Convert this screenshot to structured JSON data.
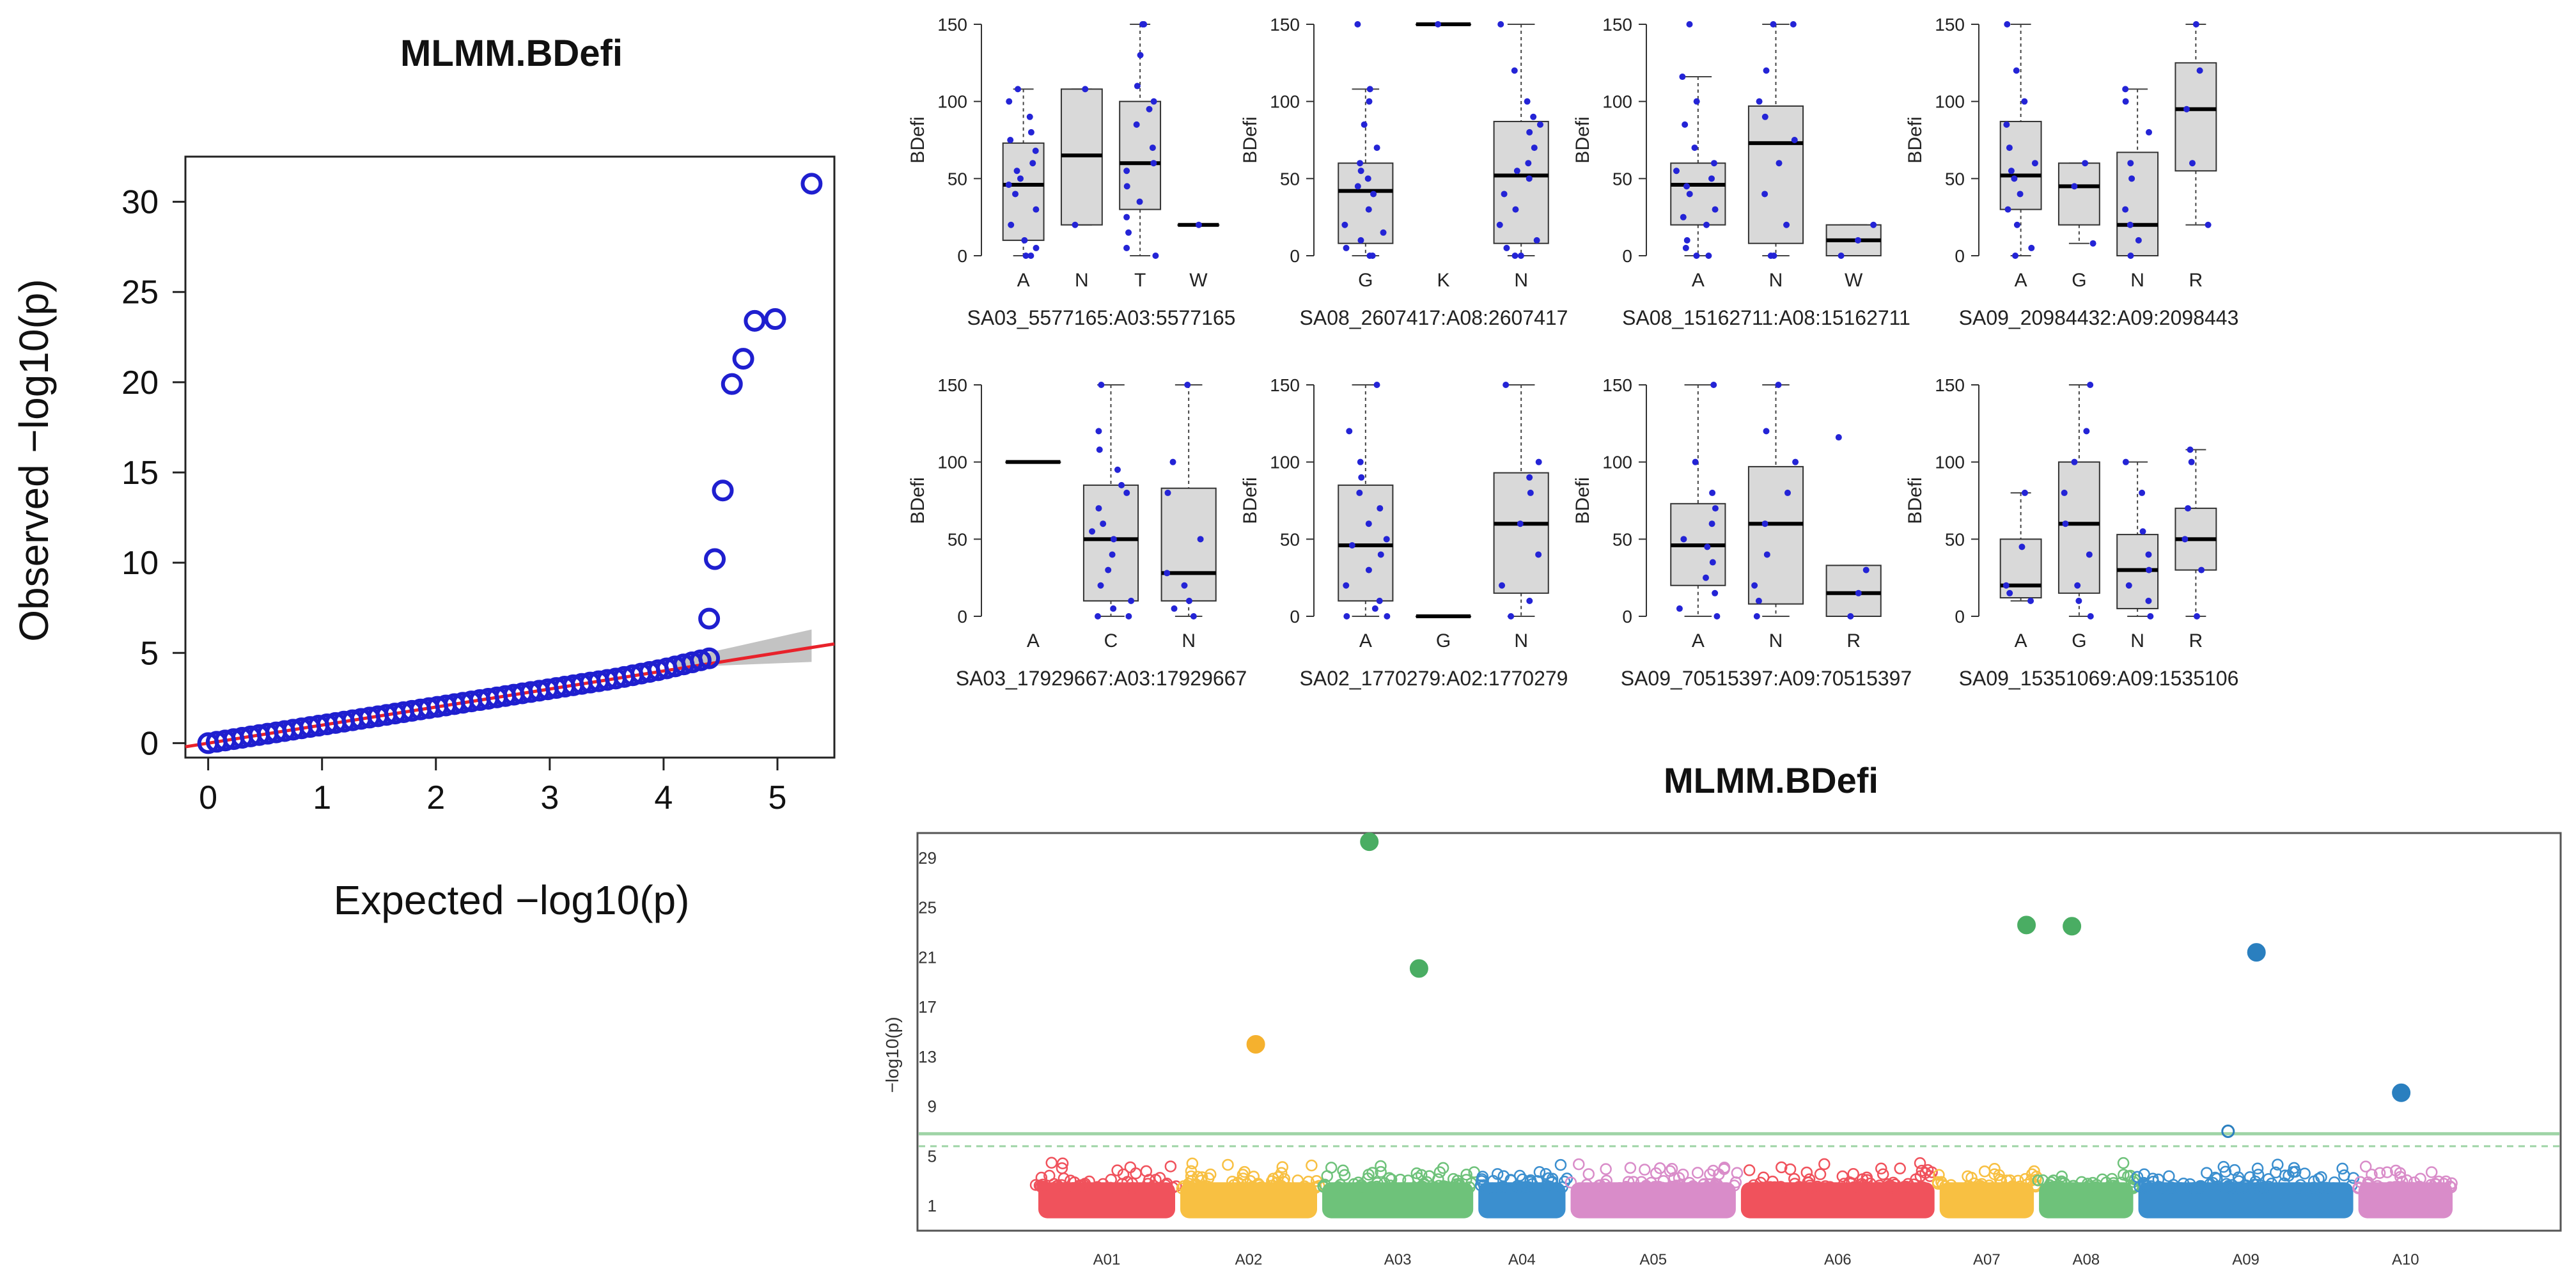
{
  "qq_plot": {
    "type": "scatter",
    "title": "MLMM.BDefi",
    "xlabel": "Expected  −log10(p)",
    "ylabel": "Observed  −log10(p)",
    "xlim": [
      -0.2,
      5.5
    ],
    "ylim": [
      -0.8,
      32.5
    ],
    "xticks": [
      0,
      1,
      2,
      3,
      4,
      5
    ],
    "yticks": [
      0,
      5,
      10,
      15,
      20,
      25,
      30
    ],
    "reference_line": {
      "x": [
        -0.2,
        5.5
      ],
      "y": [
        -0.2,
        5.5
      ]
    },
    "bulk_points": {
      "x_start": 0.0,
      "x_end": 4.4,
      "count": 60,
      "y_curve": [
        [
          0,
          0
        ],
        [
          1,
          1.0
        ],
        [
          2,
          2.0
        ],
        [
          3,
          3.0
        ],
        [
          3.6,
          3.6
        ],
        [
          4.0,
          4.1
        ],
        [
          4.4,
          4.7
        ]
      ]
    },
    "outliers": [
      [
        4.4,
        6.9
      ],
      [
        4.45,
        10.2
      ],
      [
        4.52,
        14.0
      ],
      [
        4.6,
        19.9
      ],
      [
        4.7,
        21.3
      ],
      [
        4.8,
        23.4
      ],
      [
        4.98,
        23.5
      ],
      [
        5.3,
        31.0
      ]
    ],
    "point_color": "#1f1fcf",
    "line_color": "#e8222b",
    "band_color": "#bdbdbd"
  },
  "boxplots": [
    {
      "type": "box",
      "ylabel": "BDefi",
      "xlabel": "SA03_5577165:A03:5577165",
      "ylim": [
        0,
        150
      ],
      "yticks": [
        0,
        50,
        100,
        150
      ],
      "groups": [
        {
          "label": "A",
          "q1": 10,
          "median": 46,
          "q3": 73,
          "wmin": 0,
          "wmax": 108,
          "points": [
            0,
            0,
            5,
            10,
            20,
            30,
            40,
            46,
            50,
            55,
            60,
            68,
            75,
            80,
            90,
            100,
            108
          ]
        },
        {
          "label": "N",
          "q1": 20,
          "median": 65,
          "q3": 108,
          "wmin": 20,
          "wmax": 108,
          "points": [
            20,
            108
          ]
        },
        {
          "label": "T",
          "q1": 30,
          "median": 60,
          "q3": 100,
          "wmin": 0,
          "wmax": 150,
          "points": [
            0,
            5,
            15,
            25,
            35,
            45,
            55,
            60,
            70,
            85,
            95,
            100,
            110,
            130,
            150,
            150
          ]
        },
        {
          "label": "W",
          "q1": 20,
          "median": 20,
          "q3": 20,
          "wmin": 20,
          "wmax": 20,
          "points": [
            20
          ]
        }
      ]
    },
    {
      "type": "box",
      "ylabel": "BDefi",
      "xlabel": "SA08_2607417:A08:2607417",
      "ylim": [
        0,
        150
      ],
      "yticks": [
        0,
        50,
        100,
        150
      ],
      "groups": [
        {
          "label": "G",
          "q1": 8,
          "median": 42,
          "q3": 60,
          "wmin": 0,
          "wmax": 108,
          "points": [
            0,
            0,
            5,
            10,
            15,
            20,
            30,
            40,
            45,
            50,
            55,
            60,
            70,
            85,
            100,
            108,
            150
          ]
        },
        {
          "label": "K",
          "q1": 150,
          "median": 150,
          "q3": 150,
          "wmin": 150,
          "wmax": 150,
          "points": [
            150
          ]
        },
        {
          "label": "N",
          "q1": 8,
          "median": 52,
          "q3": 87,
          "wmin": 0,
          "wmax": 150,
          "points": [
            0,
            0,
            5,
            10,
            20,
            30,
            40,
            50,
            55,
            60,
            70,
            80,
            85,
            90,
            100,
            120,
            150
          ]
        }
      ]
    },
    {
      "type": "box",
      "ylabel": "BDefi",
      "xlabel": "SA08_15162711:A08:15162711",
      "ylim": [
        0,
        150
      ],
      "yticks": [
        0,
        50,
        100,
        150
      ],
      "groups": [
        {
          "label": "A",
          "q1": 20,
          "median": 46,
          "q3": 60,
          "wmin": 0,
          "wmax": 116,
          "points": [
            0,
            0,
            5,
            10,
            20,
            25,
            30,
            40,
            45,
            50,
            55,
            60,
            70,
            85,
            100,
            116,
            150
          ]
        },
        {
          "label": "N",
          "q1": 8,
          "median": 73,
          "q3": 97,
          "wmin": 0,
          "wmax": 150,
          "points": [
            0,
            0,
            20,
            40,
            60,
            75,
            90,
            100,
            120,
            150,
            150
          ]
        },
        {
          "label": "W",
          "q1": 0,
          "median": 10,
          "q3": 20,
          "wmin": 0,
          "wmax": 20,
          "points": [
            0,
            10,
            20
          ]
        }
      ]
    },
    {
      "type": "box",
      "ylabel": "BDefi",
      "xlabel": "SA09_20984432:A09:2098443",
      "ylim": [
        0,
        150
      ],
      "yticks": [
        0,
        50,
        100,
        150
      ],
      "groups": [
        {
          "label": "A",
          "q1": 30,
          "median": 52,
          "q3": 87,
          "wmin": 0,
          "wmax": 150,
          "points": [
            0,
            5,
            20,
            30,
            40,
            50,
            55,
            60,
            70,
            85,
            100,
            120,
            150
          ]
        },
        {
          "label": "G",
          "q1": 20,
          "median": 45,
          "q3": 60,
          "wmin": 8,
          "wmax": 60,
          "points": [
            8,
            45,
            60
          ]
        },
        {
          "label": "N",
          "q1": 0,
          "median": 20,
          "q3": 67,
          "wmin": 0,
          "wmax": 108,
          "points": [
            0,
            10,
            20,
            30,
            50,
            60,
            80,
            100,
            108
          ]
        },
        {
          "label": "R",
          "q1": 55,
          "median": 95,
          "q3": 125,
          "wmin": 20,
          "wmax": 150,
          "points": [
            20,
            60,
            95,
            120,
            150
          ]
        }
      ]
    },
    {
      "type": "box",
      "ylabel": "BDefi",
      "xlabel": "SA03_17929667:A03:17929667",
      "ylim": [
        0,
        150
      ],
      "yticks": [
        0,
        50,
        100,
        150
      ],
      "groups": [
        {
          "label": "A",
          "q1": 100,
          "median": 100,
          "q3": 100,
          "wmin": 100,
          "wmax": 100,
          "points": []
        },
        {
          "label": "C",
          "q1": 10,
          "median": 50,
          "q3": 85,
          "wmin": 0,
          "wmax": 150,
          "points": [
            0,
            0,
            5,
            10,
            20,
            30,
            40,
            50,
            55,
            60,
            70,
            80,
            85,
            95,
            108,
            120,
            150
          ]
        },
        {
          "label": "N",
          "q1": 10,
          "median": 28,
          "q3": 83,
          "wmin": 0,
          "wmax": 150,
          "points": [
            0,
            5,
            10,
            20,
            28,
            50,
            80,
            100,
            150
          ]
        }
      ]
    },
    {
      "type": "box",
      "ylabel": "BDefi",
      "xlabel": "SA02_1770279:A02:1770279",
      "ylim": [
        0,
        150
      ],
      "yticks": [
        0,
        50,
        100,
        150
      ],
      "groups": [
        {
          "label": "A",
          "q1": 10,
          "median": 46,
          "q3": 85,
          "wmin": 0,
          "wmax": 150,
          "points": [
            0,
            0,
            5,
            10,
            20,
            30,
            40,
            46,
            50,
            60,
            70,
            80,
            90,
            100,
            120,
            150
          ]
        },
        {
          "label": "G",
          "q1": 0,
          "median": 0,
          "q3": 0,
          "wmin": 0,
          "wmax": 0,
          "points": []
        },
        {
          "label": "N",
          "q1": 15,
          "median": 60,
          "q3": 93,
          "wmin": 0,
          "wmax": 150,
          "points": [
            0,
            10,
            20,
            40,
            60,
            80,
            90,
            100,
            150
          ]
        }
      ]
    },
    {
      "type": "box",
      "ylabel": "BDefi",
      "xlabel": "SA09_70515397:A09:70515397",
      "ylim": [
        0,
        150
      ],
      "yticks": [
        0,
        50,
        100,
        150
      ],
      "groups": [
        {
          "label": "A",
          "q1": 20,
          "median": 46,
          "q3": 73,
          "wmin": 0,
          "wmax": 150,
          "points": [
            0,
            5,
            15,
            25,
            35,
            45,
            50,
            60,
            70,
            80,
            100,
            150
          ]
        },
        {
          "label": "N",
          "q1": 8,
          "median": 60,
          "q3": 97,
          "wmin": 0,
          "wmax": 150,
          "points": [
            0,
            10,
            20,
            40,
            60,
            80,
            100,
            120,
            150
          ]
        },
        {
          "label": "R",
          "q1": 0,
          "median": 15,
          "q3": 33,
          "wmin": 0,
          "wmax": 33,
          "points": [
            0,
            15,
            30,
            116
          ]
        }
      ]
    },
    {
      "type": "box",
      "ylabel": "BDefi",
      "xlabel": "SA09_15351069:A09:1535106",
      "ylim": [
        0,
        150
      ],
      "yticks": [
        0,
        50,
        100,
        150
      ],
      "groups": [
        {
          "label": "A",
          "q1": 12,
          "median": 20,
          "q3": 50,
          "wmin": 10,
          "wmax": 80,
          "points": [
            10,
            15,
            20,
            45,
            80
          ]
        },
        {
          "label": "G",
          "q1": 15,
          "median": 60,
          "q3": 100,
          "wmin": 0,
          "wmax": 150,
          "points": [
            0,
            10,
            20,
            40,
            60,
            80,
            100,
            120,
            150
          ]
        },
        {
          "label": "N",
          "q1": 5,
          "median": 30,
          "q3": 53,
          "wmin": 0,
          "wmax": 100,
          "points": [
            0,
            10,
            20,
            30,
            40,
            55,
            80,
            100
          ]
        },
        {
          "label": "R",
          "q1": 30,
          "median": 50,
          "q3": 70,
          "wmin": 0,
          "wmax": 108,
          "points": [
            0,
            30,
            50,
            70,
            100,
            108
          ]
        }
      ]
    }
  ],
  "manhattan": {
    "type": "scatter",
    "title": "MLMM.BDefi",
    "ylabel": "−log10(p)",
    "yticks": [
      1,
      5,
      9,
      13,
      17,
      21,
      25,
      29
    ],
    "ylim": [
      -1,
      31
    ],
    "chromosomes": [
      {
        "label": "A01",
        "start": 0,
        "end": 1.0,
        "color": "#f0525c"
      },
      {
        "label": "A02",
        "start": 1.0,
        "end": 2.0,
        "color": "#f8c042"
      },
      {
        "label": "A03",
        "start": 2.0,
        "end": 3.1,
        "color": "#6ec27a"
      },
      {
        "label": "A04",
        "start": 3.1,
        "end": 3.75,
        "color": "#3b8fcf"
      },
      {
        "label": "A05",
        "start": 3.75,
        "end": 4.95,
        "color": "#d98cc9"
      },
      {
        "label": "A06",
        "start": 4.95,
        "end": 6.35,
        "color": "#f0525c"
      },
      {
        "label": "A07",
        "start": 6.35,
        "end": 7.05,
        "color": "#f8c042"
      },
      {
        "label": "A08",
        "start": 7.05,
        "end": 7.75,
        "color": "#6ec27a"
      },
      {
        "label": "A09",
        "start": 7.75,
        "end": 9.3,
        "color": "#3b8fcf"
      },
      {
        "label": "A10",
        "start": 9.3,
        "end": 10.0,
        "color": "#d98cc9"
      }
    ],
    "threshold_solid": 6.8,
    "threshold_dashed": 5.8,
    "threshold_color": "#9fd4a6",
    "significant": [
      {
        "x": 1.55,
        "y": 14.0,
        "color": "#f5b12e"
      },
      {
        "x": 2.35,
        "y": 30.3,
        "color": "#4aad63"
      },
      {
        "x": 2.7,
        "y": 20.1,
        "color": "#4aad63"
      },
      {
        "x": 6.98,
        "y": 23.6,
        "color": "#4aad63"
      },
      {
        "x": 7.3,
        "y": 23.5,
        "color": "#4aad63"
      },
      {
        "x": 8.4,
        "y": 7.0,
        "color": "#2a7fbf"
      },
      {
        "x": 8.6,
        "y": 21.4,
        "color": "#2a7fbf"
      },
      {
        "x": 9.62,
        "y": 10.1,
        "color": "#2a7fbf"
      }
    ]
  }
}
